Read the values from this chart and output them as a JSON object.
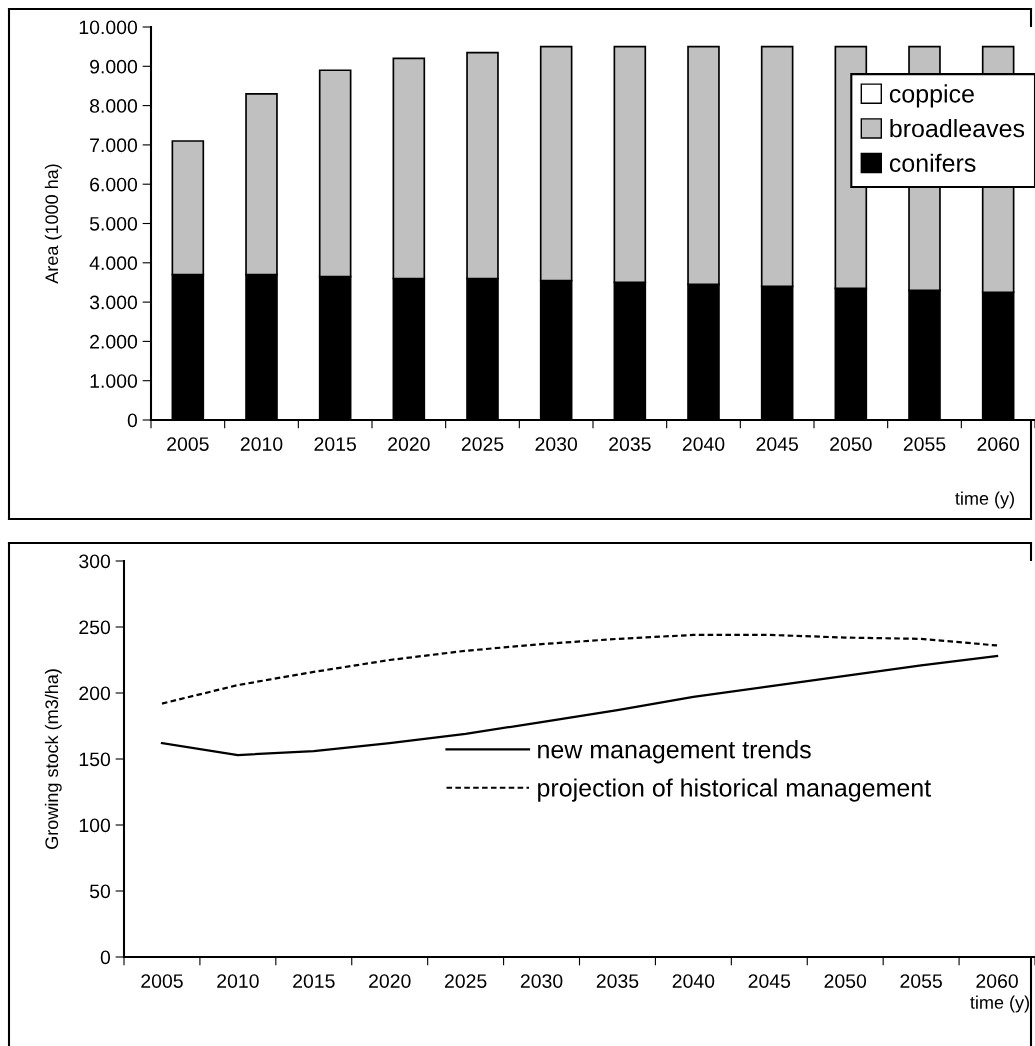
{
  "chart_data": [
    {
      "type": "bar",
      "stacked": true,
      "xlabel": "time (y)",
      "ylabel": "Area (1000 ha)",
      "categories": [
        "2005",
        "2010",
        "2015",
        "2020",
        "2025",
        "2030",
        "2035",
        "2040",
        "2045",
        "2050",
        "2055",
        "2060"
      ],
      "series": [
        {
          "name": "conifers",
          "color": "#000000",
          "values": [
            3700,
            3700,
            3650,
            3600,
            3600,
            3550,
            3500,
            3450,
            3400,
            3350,
            3300,
            3250
          ]
        },
        {
          "name": "broadleaves",
          "color": "#c0c0c0",
          "values": [
            3400,
            4600,
            5250,
            5600,
            5750,
            5950,
            6000,
            6050,
            6100,
            6150,
            6200,
            6250
          ]
        },
        {
          "name": "coppice",
          "color": "#ffffff",
          "values": [
            0,
            0,
            0,
            0,
            0,
            0,
            0,
            0,
            0,
            0,
            0,
            0
          ]
        }
      ],
      "ylim": [
        0,
        10000
      ],
      "yticks": [
        0,
        {
          "value": 1000,
          "label": "1.000"
        },
        {
          "value": 2000,
          "label": "2.000"
        },
        {
          "value": 3000,
          "label": "3.000"
        },
        {
          "value": 4000,
          "label": "4.000"
        },
        {
          "value": 5000,
          "label": "5.000"
        },
        {
          "value": 6000,
          "label": "6.000"
        },
        {
          "value": 7000,
          "label": "7.000"
        },
        {
          "value": 8000,
          "label": "8.000"
        },
        {
          "value": 9000,
          "label": "9.000"
        },
        {
          "value": 10000,
          "label": "10.000"
        }
      ],
      "grid": false,
      "legend": "top right"
    },
    {
      "type": "line",
      "xlabel": "time (y)",
      "ylabel": "Growing stock (m3/ha)",
      "categories": [
        "2005",
        "2010",
        "2015",
        "2020",
        "2025",
        "2030",
        "2035",
        "2040",
        "2045",
        "2050",
        "2055",
        "2060"
      ],
      "series": [
        {
          "name": "new management trends",
          "color": "#000000",
          "line_style": "solid",
          "values": [
            162,
            153,
            156,
            162,
            169,
            178,
            187,
            197,
            205,
            213,
            221,
            228
          ]
        },
        {
          "name": "projection of historical management",
          "color": "#000000",
          "line_style": "dotted",
          "values": [
            192,
            206,
            216,
            225,
            232,
            237,
            241,
            244,
            244,
            242,
            241,
            236
          ]
        }
      ],
      "ylim": [
        0,
        300
      ],
      "yticks": [
        0,
        50,
        100,
        150,
        200,
        250,
        300
      ],
      "grid": false,
      "legend": "center",
      "marker": "none"
    }
  ]
}
